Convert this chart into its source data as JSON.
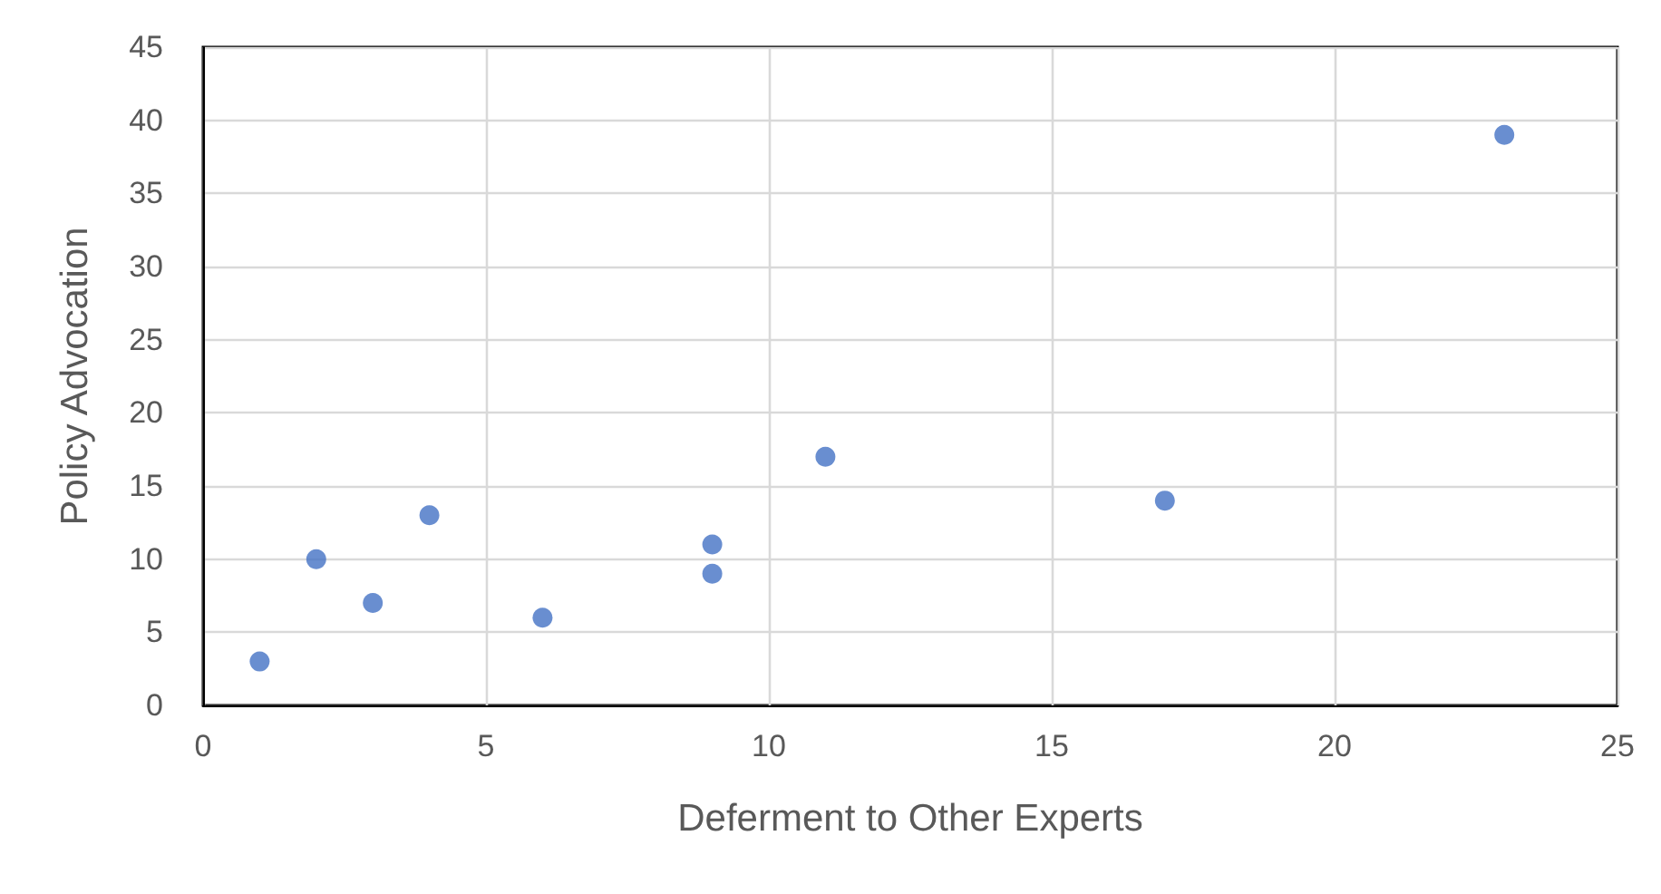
{
  "chart_data": {
    "type": "scatter",
    "xlabel": "Deferment to Other Experts",
    "ylabel": "Policy Advocation",
    "x": [
      1,
      2,
      3,
      4,
      6,
      9,
      9,
      11,
      17,
      23
    ],
    "values": [
      3,
      10,
      7,
      13,
      6,
      11,
      9,
      17,
      14,
      39
    ],
    "color": "#4472c4",
    "xlim": [
      0,
      25
    ],
    "xticks": [
      0,
      5,
      10,
      15,
      20,
      25
    ],
    "ylim": [
      0,
      45
    ],
    "yticks": [
      0,
      5,
      10,
      15,
      20,
      25,
      30,
      35,
      40,
      45
    ],
    "grid": true,
    "marker": "circle"
  }
}
